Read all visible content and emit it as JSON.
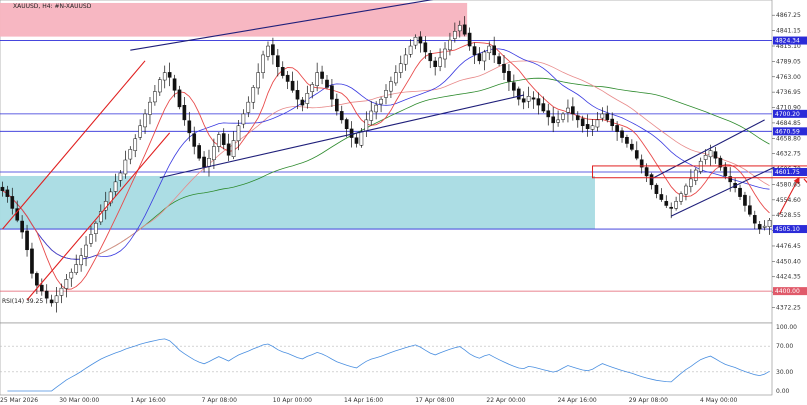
{
  "chart_data": {
    "type": "candlestick",
    "title": "XAUUSD, H4:  #N-XAUUSD",
    "price_axis": {
      "ylim": [
        4346.0,
        4893.0
      ],
      "ticks": [
        4867.25,
        4841.15,
        4815.1,
        4789.05,
        4763.0,
        4736.95,
        4710.9,
        4684.85,
        4658.8,
        4632.75,
        4606.7,
        4580.65,
        4554.6,
        4528.55,
        4502.5,
        4476.45,
        4450.4,
        4424.35,
        4398.3,
        4372.25
      ]
    },
    "time_axis": {
      "labels": [
        "25 Mar 2026",
        "30 Mar 00:00",
        "1 Apr 16:00",
        "7 Apr 08:00",
        "10 Apr 00:00",
        "14 Apr 16:00",
        "17 Apr 08:00",
        "22 Apr 00:00",
        "24 Apr 16:00",
        "29 Apr 08:00",
        "4 May 00:00"
      ]
    },
    "levels": [
      {
        "value": "4824.34",
        "price": 4824.34,
        "color": "#2b2bd8"
      },
      {
        "value": "4700.20",
        "price": 4700.2,
        "color": "#2b2bd8"
      },
      {
        "value": "4670.59",
        "price": 4670.59,
        "color": "#2b2bd8"
      },
      {
        "value": "4601.75",
        "price": 4601.75,
        "color": "#2b2bd8"
      },
      {
        "value": "4505.10",
        "price": 4505.1,
        "color": "#2b2bd8"
      },
      {
        "value": "4400.00",
        "price": 4400.0,
        "color": "#e05a6a"
      }
    ],
    "zones": [
      {
        "name": "supply",
        "y": [
          4831,
          4888
        ],
        "x_bars": [
          0,
          94
        ],
        "color": "#f7b3bf"
      },
      {
        "name": "demand",
        "y": [
          4505,
          4595
        ],
        "x_bars": [
          0,
          120
        ],
        "color": "#a8dbe3"
      }
    ],
    "close": [
      4570,
      4560,
      4540,
      4520,
      4500,
      4470,
      4430,
      4410,
      4400,
      4388,
      4380,
      4392,
      4405,
      4420,
      4432,
      4445,
      4460,
      4478,
      4496,
      4515,
      4535,
      4552,
      4568,
      4585,
      4600,
      4622,
      4640,
      4658,
      4680,
      4700,
      4720,
      4738,
      4758,
      4770,
      4762,
      4740,
      4712,
      4690,
      4668,
      4645,
      4625,
      4610,
      4625,
      4645,
      4665,
      4648,
      4630,
      4655,
      4680,
      4700,
      4720,
      4745,
      4770,
      4800,
      4815,
      4800,
      4780,
      4765,
      4755,
      4740,
      4725,
      4715,
      4735,
      4750,
      4770,
      4760,
      4745,
      4725,
      4705,
      4690,
      4675,
      4660,
      4650,
      4670,
      4690,
      4705,
      4715,
      4725,
      4740,
      4755,
      4770,
      4785,
      4800,
      4815,
      4830,
      4820,
      4805,
      4790,
      4780,
      4795,
      4810,
      4825,
      4840,
      4850,
      4835,
      4815,
      4800,
      4790,
      4805,
      4815,
      4800,
      4785,
      4770,
      4755,
      4740,
      4725,
      4720,
      4730,
      4725,
      4715,
      4705,
      4695,
      4685,
      4690,
      4700,
      4710,
      4700,
      4690,
      4680,
      4675,
      4680,
      4690,
      4700,
      4690,
      4680,
      4670,
      4660,
      4650,
      4640,
      4625,
      4610,
      4595,
      4580,
      4565,
      4555,
      4545,
      4540,
      4552,
      4565,
      4578,
      4590,
      4605,
      4620,
      4630,
      4638,
      4625,
      4610,
      4595,
      4585,
      4575,
      4560,
      4545,
      4530,
      4515,
      4505,
      4510,
      4520
    ],
    "band": [
      4400,
      4893
    ],
    "rising_wedge_lines": [
      {
        "from": [
          0,
          4505
        ],
        "to": [
          29,
          4790
        ],
        "color": "#e02020"
      },
      {
        "from": [
          5,
          4385
        ],
        "to": [
          34,
          4668
        ],
        "color": "#e02020"
      }
    ],
    "channel_lines": [
      {
        "from": [
          26,
          4808
        ],
        "to": [
          92,
          4900
        ],
        "color": "#1f1f7a"
      },
      {
        "from": [
          32,
          4592
        ],
        "to": [
          106,
          4732
        ],
        "color": "#1f1f7a"
      },
      {
        "from": [
          136,
          4527
        ],
        "to": [
          157,
          4610
        ],
        "color": "#1f1f7a"
      },
      {
        "from": [
          132,
          4590
        ],
        "to": [
          155,
          4690
        ],
        "color": "#1f1f7a"
      }
    ],
    "projection_arrows": [
      {
        "from": [
          158,
          4530
        ],
        "to": [
          162,
          4592
        ],
        "color": "#e02020"
      },
      {
        "from": [
          163,
          4590
        ],
        "to": [
          173,
          4495
        ],
        "color": "#e02020"
      }
    ],
    "ma_colors": {
      "fast": "#e84a4a",
      "mid": "#3a3ae0",
      "slow": "#e88a8a",
      "long": "#2e8b2e"
    },
    "rsi": {
      "label": "RSI(14) 39.25",
      "ylim": [
        0,
        100
      ],
      "ticks": [
        100.0,
        70.0,
        30.0,
        0.0
      ],
      "color": "#4a8fe0"
    }
  }
}
